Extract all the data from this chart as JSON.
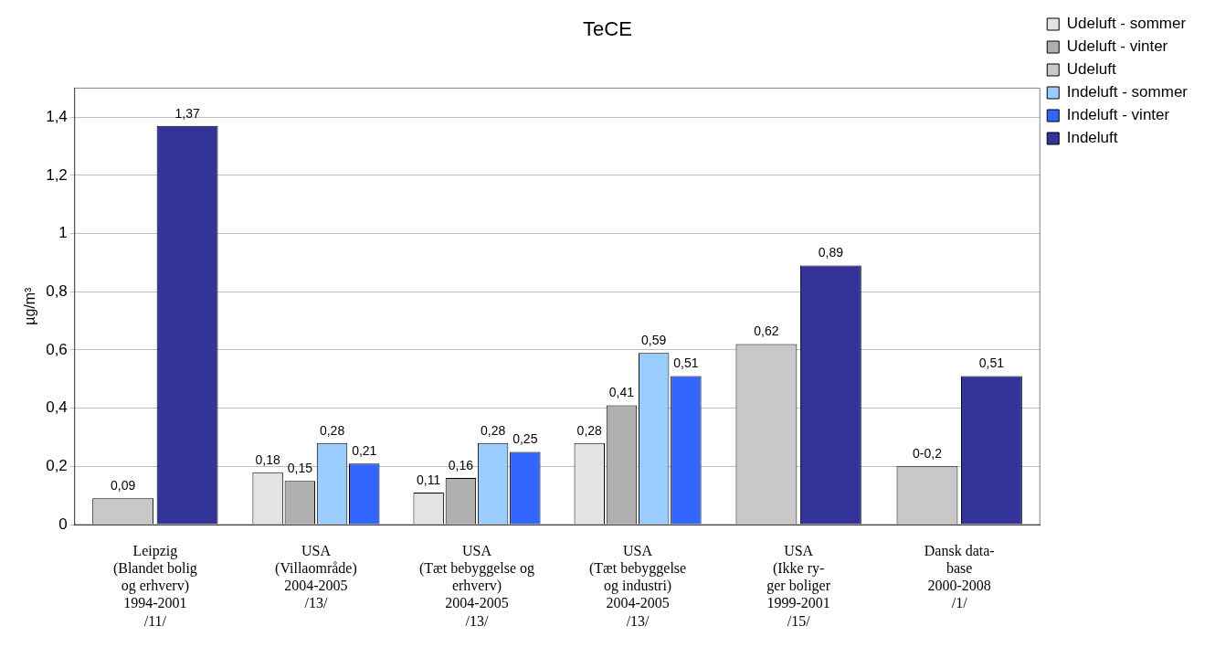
{
  "chart_data": {
    "type": "bar",
    "title": "TeCE",
    "ylabel": "µg/m³",
    "categories": [
      "Leipzig\n(Blandet bolig\nog erhverv)\n1994-2001\n/11/",
      "USA\n(Villaområde)\n2004-2005\n/13/",
      "USA\n(Tæt bebyggelse og\nerhverv)\n2004-2005\n/13/",
      "USA\n(Tæt bebyggelse\nog industri)\n2004-2005\n/13/",
      "USA\n(Ikke ry-\nger boliger\n1999-2001\n/15/",
      "Dansk data-\nbase\n2000-2008\n/1/"
    ],
    "series": [
      {
        "name": "Udeluft - sommer",
        "color": "#e3e3e3",
        "values": [
          null,
          0.18,
          0.11,
          0.28,
          null,
          null
        ],
        "value_labels": [
          null,
          "0,18",
          "0,11",
          "0,28",
          null,
          null
        ]
      },
      {
        "name": "Udeluft - vinter",
        "color": "#b0b0b0",
        "values": [
          null,
          0.15,
          0.16,
          0.41,
          null,
          null
        ],
        "value_labels": [
          null,
          "0,15",
          "0,16",
          "0,41",
          null,
          null
        ]
      },
      {
        "name": "Udeluft",
        "color": "#c8c8c8",
        "values": [
          0.09,
          null,
          null,
          null,
          0.62,
          0.2
        ],
        "value_labels": [
          "0,09",
          null,
          null,
          null,
          "0,62",
          "0-0,2"
        ]
      },
      {
        "name": "Indeluft - sommer",
        "color": "#99ccff",
        "values": [
          null,
          0.28,
          0.28,
          0.59,
          null,
          null
        ],
        "value_labels": [
          null,
          "0,28",
          "0,28",
          "0,59",
          null,
          null
        ]
      },
      {
        "name": "Indeluft - vinter",
        "color": "#3366ff",
        "values": [
          null,
          0.21,
          0.25,
          0.51,
          null,
          null
        ],
        "value_labels": [
          null,
          "0,21",
          "0,25",
          "0,51",
          null,
          null
        ]
      },
      {
        "name": "Indeluft",
        "color": "#333399",
        "values": [
          1.37,
          null,
          null,
          null,
          0.89,
          0.51
        ],
        "value_labels": [
          "1,37",
          null,
          null,
          null,
          "0,89",
          "0,51"
        ]
      }
    ],
    "ylim": [
      0,
      1.5
    ],
    "yticks": [
      0,
      {
        "value": 0.2,
        "label": "0,2"
      },
      {
        "value": 0.4,
        "label": "0,4"
      },
      {
        "value": 0.6,
        "label": "0,6"
      },
      {
        "value": 0.8,
        "label": "0,8"
      },
      1,
      {
        "value": 1.2,
        "label": "1,2"
      },
      {
        "value": 1.4,
        "label": "1,4"
      }
    ],
    "grid": "y",
    "legend": "right"
  }
}
